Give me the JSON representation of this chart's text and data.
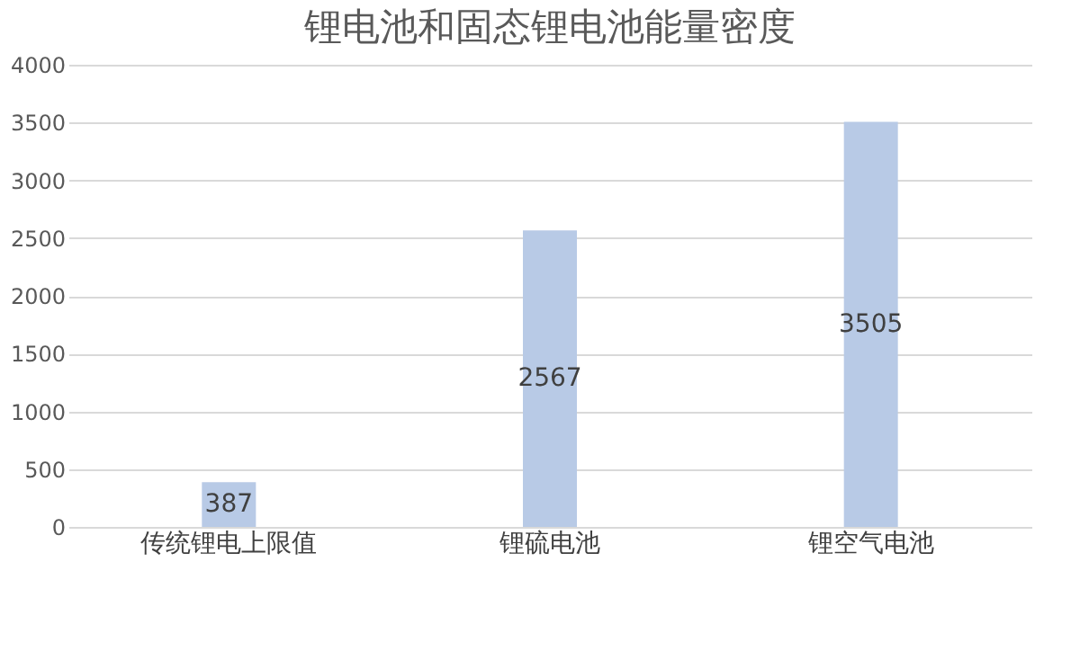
{
  "chart_data": {
    "type": "bar",
    "title": "锂电池和固态锂电池能量密度",
    "categories": [
      "传统锂电上限值",
      "锂硫电池",
      "锂空气电池"
    ],
    "values": [
      387,
      2567,
      3505
    ],
    "color": "#b8cae6",
    "ylim": [
      0,
      4000
    ],
    "yticks": [
      0,
      500,
      1000,
      1500,
      2000,
      2500,
      3000,
      3500,
      4000
    ],
    "grid": "y",
    "data_labels": true
  }
}
